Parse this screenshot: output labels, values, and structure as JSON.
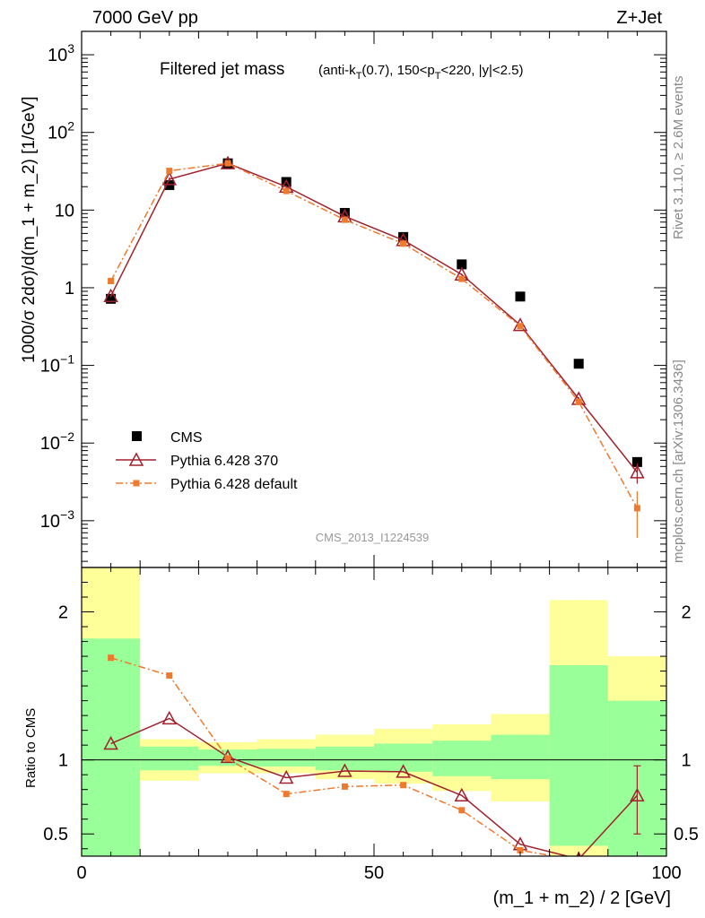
{
  "header": {
    "left_label": "7000 GeV pp",
    "right_label": "Z+Jet"
  },
  "side_labels": {
    "rivet": "Rivet 3.1.10, ≥ 2.6M events",
    "mcplots": "mcplots.cern.ch [arXiv:1306.3436]"
  },
  "analysis_id": "CMS_2013_I1224539",
  "chart_data": [
    {
      "type": "scatter",
      "panel": "main",
      "title": "Filtered jet mass",
      "subtitle": {
        "a": "(anti-k",
        "a_sub": "T",
        "b": "(0.7), 150<p",
        "b_sub": "T",
        "c": "<220, |y|<2.5)"
      },
      "ylabel": "1000/σ 2dσ)/d(m_1 + m_2) [1/GeV]",
      "xlabel": "(m_1 + m_2) / 2 [GeV]",
      "yscale": "log",
      "ylim": [
        0.00025,
        2000
      ],
      "xlim": [
        0,
        100
      ],
      "x_ticks": [
        0,
        50,
        100
      ],
      "y_ticks": [
        {
          "value": 0.001,
          "label": "10",
          "exp": "−3"
        },
        {
          "value": 0.01,
          "label": "10",
          "exp": "−2"
        },
        {
          "value": 0.1,
          "label": "10",
          "exp": "−1"
        },
        {
          "value": 1,
          "label": "1",
          "exp": ""
        },
        {
          "value": 10,
          "label": "10",
          "exp": ""
        },
        {
          "value": 100,
          "label": "10",
          "exp": "2"
        },
        {
          "value": 1000,
          "label": "10",
          "exp": "3"
        }
      ],
      "legend_position": "bottom-left",
      "bins": [
        [
          0,
          10
        ],
        [
          10,
          20
        ],
        [
          20,
          30
        ],
        [
          30,
          40
        ],
        [
          40,
          50
        ],
        [
          50,
          60
        ],
        [
          60,
          70
        ],
        [
          70,
          80
        ],
        [
          80,
          90
        ],
        [
          90,
          100
        ]
      ],
      "x": [
        5,
        15,
        25,
        35,
        45,
        55,
        65,
        75,
        85,
        95
      ],
      "series": [
        {
          "name": "CMS",
          "color": "#000000",
          "marker": "square",
          "values": [
            0.72,
            21,
            40,
            23,
            9.2,
            4.5,
            2.0,
            0.77,
            0.105,
            0.0057
          ]
        },
        {
          "name": "Pythia 6.428 370",
          "color": "#a0212d",
          "marker": "triangle-open",
          "line": "solid",
          "values": [
            0.78,
            25,
            40,
            20,
            8.3,
            4.1,
            1.48,
            0.33,
            0.037,
            0.0042
          ],
          "errors": [
            [
              0.75,
              0.81
            ],
            [
              23.5,
              26.5
            ],
            [
              38,
              42.5
            ],
            [
              19.3,
              20.7
            ],
            [
              8.1,
              8.5
            ],
            [
              4.0,
              4.2
            ],
            [
              1.44,
              1.52
            ],
            [
              0.32,
              0.34
            ],
            [
              0.035,
              0.039
            ],
            [
              0.003,
              0.0055
            ]
          ]
        },
        {
          "name": "Pythia 6.428 default",
          "color": "#ee7a2e",
          "marker": "square-small",
          "line": "dashdot",
          "values": [
            1.22,
            32,
            40,
            17.6,
            7.5,
            3.7,
            1.3,
            0.32,
            0.034,
            0.00145
          ],
          "errors": [
            [
              1.17,
              1.27
            ],
            [
              30.5,
              33.5
            ],
            [
              38.5,
              42
            ],
            [
              17.1,
              18.1
            ],
            [
              7.3,
              7.7
            ],
            [
              3.6,
              3.8
            ],
            [
              1.26,
              1.34
            ],
            [
              0.31,
              0.33
            ],
            [
              0.032,
              0.036
            ],
            [
              0.0006,
              0.0024
            ]
          ]
        }
      ]
    },
    {
      "type": "line",
      "panel": "ratio",
      "ylabel": "Ratio to CMS",
      "xlabel": "(m_1 + m_2) / 2 [GeV]",
      "ylim": [
        0.35,
        2.3
      ],
      "xlim": [
        0,
        100
      ],
      "y_ticks": [
        0.5,
        1,
        2
      ],
      "reference_line": 1,
      "x": [
        5,
        15,
        25,
        35,
        45,
        55,
        65,
        75,
        85,
        95
      ],
      "bands": {
        "stat": {
          "color": "#99ff99",
          "lo": [
            0.2,
            0.93,
            0.96,
            0.955,
            0.93,
            0.92,
            0.89,
            0.87,
            0.42,
            0.2
          ],
          "hi": [
            1.82,
            1.09,
            1.07,
            1.075,
            1.09,
            1.11,
            1.13,
            1.17,
            1.64,
            1.4
          ]
        },
        "total": {
          "color": "#ffff99",
          "lo": [
            0.2,
            0.86,
            0.91,
            0.91,
            0.87,
            0.84,
            0.79,
            0.72,
            0.26,
            0.2
          ],
          "hi": [
            2.5,
            1.14,
            1.12,
            1.14,
            1.17,
            1.21,
            1.24,
            1.31,
            2.08,
            1.7
          ]
        }
      },
      "series": [
        {
          "name": "Pythia 6.428 370",
          "color": "#a0212d",
          "marker": "triangle-open",
          "line": "solid",
          "values": [
            1.11,
            1.28,
            1.02,
            0.88,
            0.925,
            0.92,
            0.76,
            0.43,
            0.33,
            0.76
          ],
          "errors": [
            null,
            null,
            null,
            null,
            null,
            null,
            null,
            null,
            null,
            [
              0.5,
              0.96
            ]
          ]
        },
        {
          "name": "Pythia 6.428 default",
          "color": "#ee7a2e",
          "marker": "square-small",
          "line": "dashdot",
          "values": [
            1.69,
            1.57,
            1.01,
            0.77,
            0.82,
            0.83,
            0.66,
            0.39,
            0.32,
            0.26
          ]
        }
      ]
    }
  ]
}
